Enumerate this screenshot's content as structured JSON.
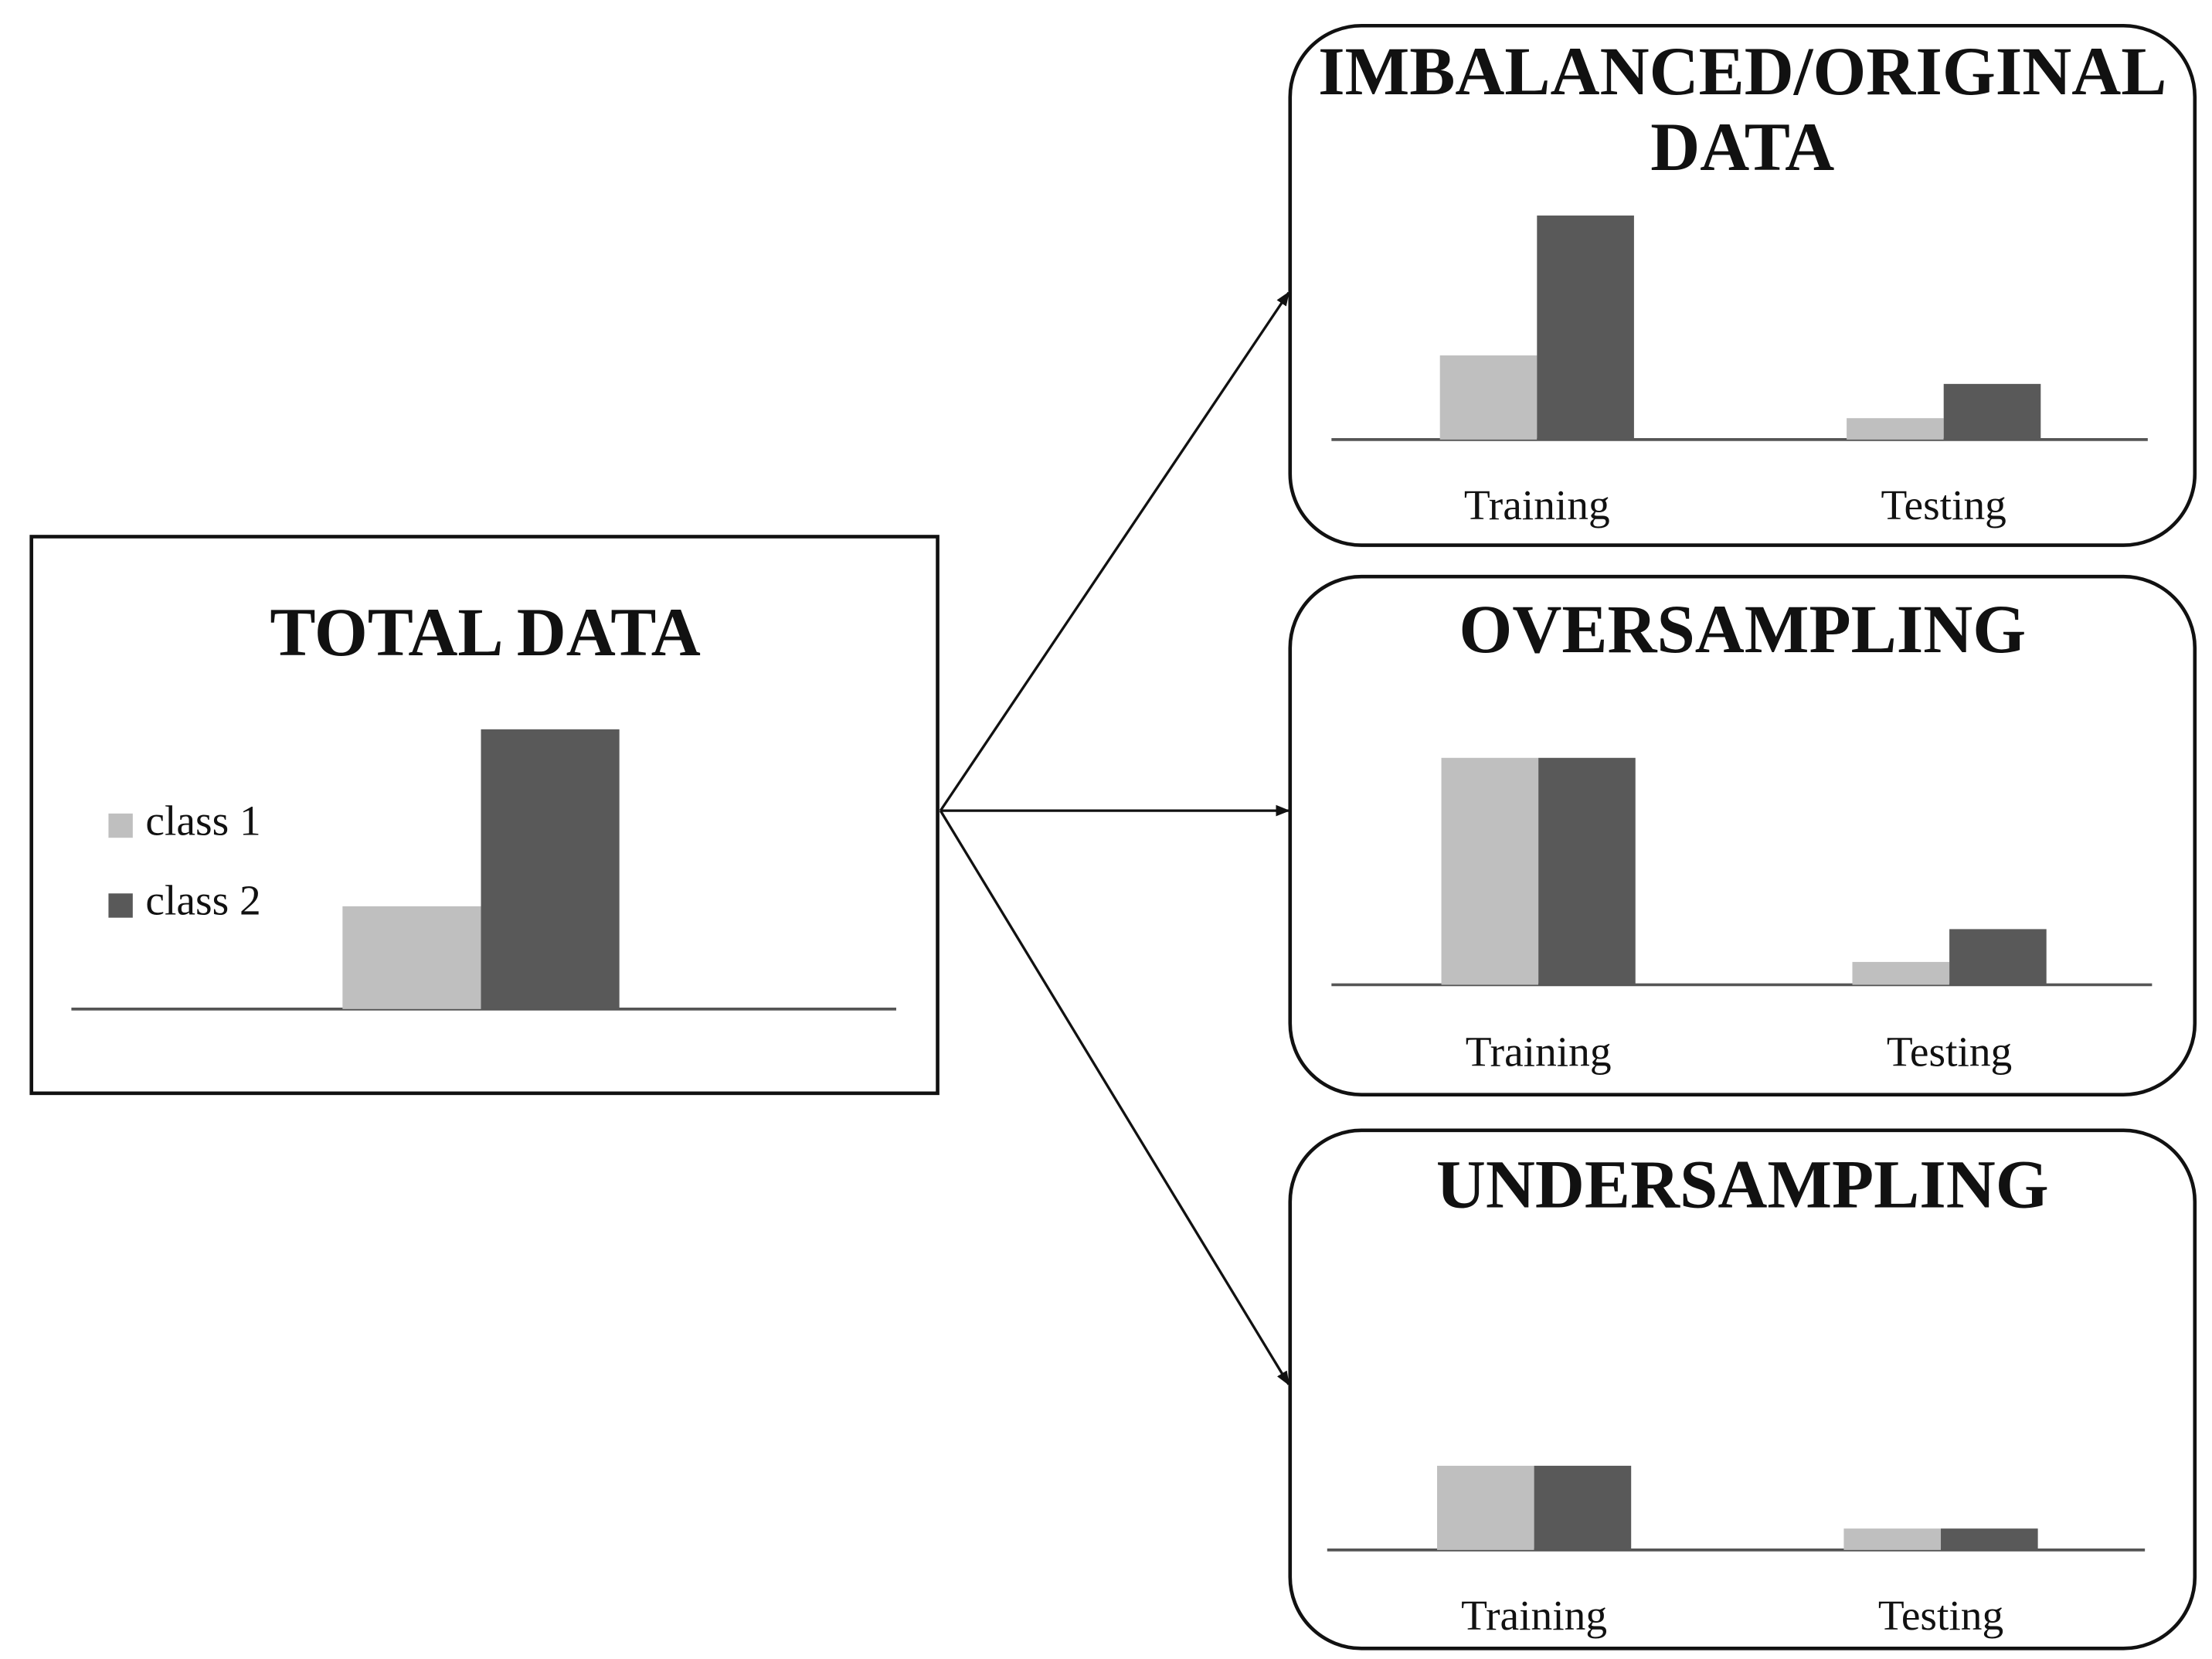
{
  "total": {
    "title": "TOTAL DATA",
    "series": [
      {
        "name": "class 1",
        "color": "#bfbfbf",
        "values": [
          72
        ]
      },
      {
        "name": "class 2",
        "color": "#595959",
        "values": [
          196
        ]
      }
    ]
  },
  "panels": [
    {
      "title": [
        "IMBALANCED/ORIGINAL",
        "DATA"
      ],
      "categories": [
        "Training",
        "Testing"
      ],
      "series": [
        {
          "color": "#bfbfbf",
          "values": [
            59,
            15
          ]
        },
        {
          "color": "#595959",
          "values": [
            157,
            39
          ]
        }
      ]
    },
    {
      "title": "OVERSAMPLING",
      "categories": [
        "Training",
        "Testing"
      ],
      "series": [
        {
          "color": "#bfbfbf",
          "values": [
            159,
            16
          ]
        },
        {
          "color": "#595959",
          "values": [
            159,
            39
          ]
        }
      ]
    },
    {
      "title": "UNDERSAMPLING",
      "categories": [
        "Training",
        "Testing"
      ],
      "series": [
        {
          "color": "#bfbfbf",
          "values": [
            59,
            15
          ]
        },
        {
          "color": "#595959",
          "values": [
            59,
            15
          ]
        }
      ]
    }
  ]
}
